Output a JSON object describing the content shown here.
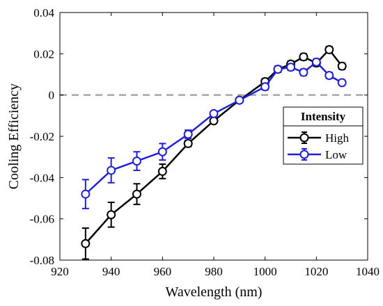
{
  "chart_data": {
    "type": "line",
    "xlabel": "Wavelength (nm)",
    "ylabel": "Cooling Efficiency",
    "xlim": [
      920,
      1040
    ],
    "ylim": [
      -0.08,
      0.04
    ],
    "xticks": [
      920,
      940,
      960,
      980,
      1000,
      1020,
      1040
    ],
    "yticks": [
      -0.08,
      -0.06,
      -0.04,
      -0.02,
      0,
      0.02,
      0.04
    ],
    "xtick_labels": [
      "920",
      "940",
      "960",
      "980",
      "1000",
      "1020",
      "1040"
    ],
    "ytick_labels": [
      "-0.08",
      "-0.06",
      "-0.04",
      "-0.02",
      "0",
      "0.02",
      "0.04"
    ],
    "reference_line": {
      "y": 0,
      "style": "dashed",
      "color": "#a6a6a6"
    },
    "grid": false,
    "legend": {
      "title": "Intensity",
      "placement": "right"
    },
    "x": [
      930,
      940,
      950,
      960,
      970,
      980,
      990,
      1000,
      1005,
      1010,
      1015,
      1020,
      1025,
      1030
    ],
    "series": [
      {
        "name": "High",
        "color": "#000000",
        "values": [
          -0.072,
          -0.058,
          -0.048,
          -0.037,
          -0.0235,
          -0.0125,
          -0.0025,
          0.0065,
          0.0125,
          0.015,
          0.0185,
          0.0155,
          0.022,
          0.014
        ],
        "errors": [
          0.0075,
          0.006,
          0.005,
          0.0035,
          0.0015,
          0.001,
          0.001,
          0.0015,
          0.0015,
          0.0015,
          0.0015,
          0.0015,
          0.0015,
          0.0015
        ]
      },
      {
        "name": "Low",
        "color": "#1f1fd6",
        "values": [
          -0.048,
          -0.0365,
          -0.032,
          -0.0275,
          -0.019,
          -0.009,
          -0.0025,
          0.004,
          0.0125,
          0.0135,
          0.011,
          0.016,
          0.0095,
          0.006
        ],
        "errors": [
          0.007,
          0.006,
          0.0045,
          0.004,
          0.002,
          0.001,
          0.001,
          0.0015,
          0.0015,
          0.0015,
          0.0015,
          0.0015,
          0.0015,
          0.001
        ]
      }
    ]
  }
}
